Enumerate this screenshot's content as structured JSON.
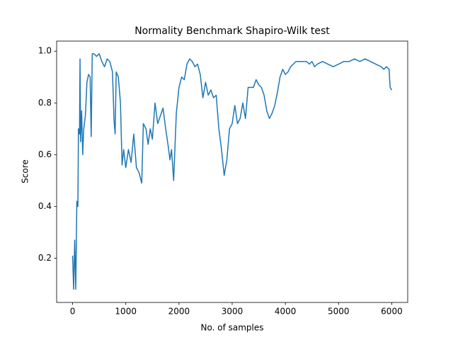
{
  "chart_data": {
    "type": "line",
    "title": "Normality Benchmark Shapiro-Wilk test",
    "x_label": "No. of samples",
    "y_label": "Score",
    "color": "#1f77b4",
    "grid": false,
    "xlim": [
      -300,
      6300
    ],
    "ylim": [
      0.029,
      1.039
    ],
    "xticks": [
      0,
      1000,
      2000,
      3000,
      4000,
      5000,
      6000
    ],
    "yticks": [
      0.2,
      0.4,
      0.6,
      0.8,
      {
        "value": 1,
        "label": "1.0"
      }
    ],
    "x": [
      0,
      20,
      40,
      60,
      80,
      100,
      110,
      130,
      140,
      150,
      170,
      190,
      210,
      240,
      270,
      300,
      330,
      350,
      370,
      400,
      450,
      500,
      550,
      600,
      650,
      700,
      750,
      780,
      800,
      820,
      860,
      900,
      930,
      960,
      1000,
      1050,
      1100,
      1150,
      1200,
      1250,
      1300,
      1330,
      1380,
      1420,
      1460,
      1500,
      1550,
      1600,
      1650,
      1700,
      1750,
      1800,
      1830,
      1860,
      1900,
      1950,
      2000,
      2050,
      2100,
      2150,
      2200,
      2250,
      2300,
      2350,
      2400,
      2450,
      2500,
      2550,
      2600,
      2650,
      2700,
      2750,
      2800,
      2850,
      2900,
      2950,
      3000,
      3050,
      3100,
      3150,
      3200,
      3250,
      3300,
      3400,
      3450,
      3500,
      3550,
      3600,
      3650,
      3700,
      3750,
      3800,
      3850,
      3900,
      3950,
      4000,
      4050,
      4100,
      4200,
      4300,
      4400,
      4450,
      4500,
      4550,
      4600,
      4700,
      4800,
      4900,
      5000,
      5100,
      5200,
      5300,
      5400,
      5500,
      5600,
      5700,
      5800,
      5850,
      5900,
      5950,
      5970,
      6000
    ],
    "values": [
      0.21,
      0.08,
      0.27,
      0.08,
      0.42,
      0.4,
      0.7,
      0.68,
      0.97,
      0.65,
      0.77,
      0.6,
      0.7,
      0.75,
      0.88,
      0.91,
      0.9,
      0.67,
      0.99,
      0.99,
      0.98,
      0.99,
      0.96,
      0.94,
      0.97,
      0.96,
      0.92,
      0.73,
      0.68,
      0.92,
      0.9,
      0.8,
      0.56,
      0.62,
      0.55,
      0.62,
      0.57,
      0.68,
      0.55,
      0.53,
      0.49,
      0.72,
      0.7,
      0.64,
      0.7,
      0.66,
      0.8,
      0.72,
      0.75,
      0.78,
      0.7,
      0.63,
      0.58,
      0.62,
      0.5,
      0.76,
      0.86,
      0.9,
      0.89,
      0.95,
      0.97,
      0.96,
      0.94,
      0.95,
      0.91,
      0.82,
      0.88,
      0.83,
      0.85,
      0.82,
      0.83,
      0.7,
      0.62,
      0.52,
      0.58,
      0.7,
      0.72,
      0.79,
      0.72,
      0.74,
      0.8,
      0.74,
      0.86,
      0.86,
      0.89,
      0.87,
      0.86,
      0.83,
      0.77,
      0.74,
      0.76,
      0.79,
      0.84,
      0.9,
      0.93,
      0.91,
      0.92,
      0.94,
      0.96,
      0.96,
      0.96,
      0.95,
      0.96,
      0.94,
      0.95,
      0.96,
      0.95,
      0.94,
      0.95,
      0.96,
      0.96,
      0.97,
      0.96,
      0.97,
      0.96,
      0.95,
      0.94,
      0.93,
      0.94,
      0.93,
      0.86,
      0.85
    ]
  }
}
